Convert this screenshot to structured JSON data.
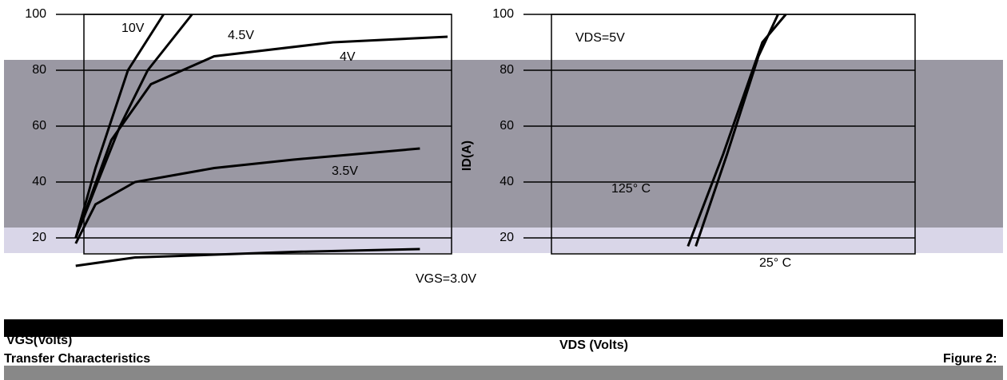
{
  "chart_data": [
    {
      "type": "line",
      "xlim": [
        0,
        5
      ],
      "ylim": [
        0,
        100
      ],
      "yticks": [
        20,
        40,
        60,
        80,
        100
      ],
      "grid": true,
      "series": [
        {
          "name": "10V",
          "color": "#000000",
          "x": [
            0.25,
            0.5,
            0.91,
            1.36
          ],
          "values": [
            20,
            45,
            80,
            100
          ]
        },
        {
          "name": "4.5V",
          "color": "#000000",
          "x": [
            0.25,
            0.5,
            0.81,
            1.16,
            1.72
          ],
          "values": [
            20,
            38,
            60,
            80,
            100
          ]
        },
        {
          "name": "4V",
          "color": "#000000",
          "x": [
            0.25,
            0.7,
            1.2,
            2,
            3.5,
            4.95
          ],
          "values": [
            20,
            55,
            75,
            85,
            90,
            92
          ]
        },
        {
          "name": "3.5V",
          "color": "#000000",
          "x": [
            0.25,
            0.5,
            1,
            2,
            3,
            4.6
          ],
          "values": [
            18,
            32,
            40,
            45,
            48,
            52
          ]
        },
        {
          "name": "VGS=3.0V",
          "color": "#000000",
          "x": [
            0.25,
            1,
            2,
            3,
            4.6
          ],
          "values": [
            10,
            13,
            14,
            15,
            16
          ]
        }
      ]
    },
    {
      "type": "line",
      "y_label": "ID(A)",
      "annotation": "VDS=5V",
      "xlim": [
        0,
        5
      ],
      "ylim": [
        0,
        100
      ],
      "yticks": [
        20,
        40,
        60,
        80,
        100
      ],
      "grid": true,
      "series": [
        {
          "name": "25° C",
          "color": "#000000",
          "x": [
            2.2,
            2.6,
            3.0,
            3.25
          ],
          "values": [
            17,
            50,
            85,
            100
          ]
        },
        {
          "name": "125° C",
          "color": "#000000",
          "x": [
            2.1,
            2.55,
            3.05,
            3.35
          ],
          "values": [
            17,
            50,
            90,
            100
          ]
        }
      ]
    }
  ],
  "captions": [
    "VGS(Volts)",
    "VDS (Volts)",
    "Transfer Characteristics",
    "Figure 2:"
  ]
}
